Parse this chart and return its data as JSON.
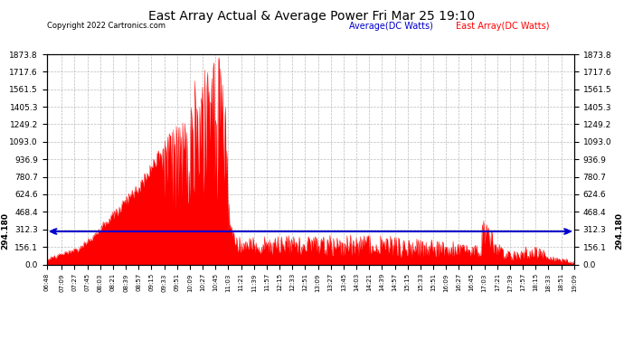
{
  "title": "East Array Actual & Average Power Fri Mar 25 19:10",
  "copyright": "Copyright 2022 Cartronics.com",
  "legend_avg": "Average(DC Watts)",
  "legend_east": "East Array(DC Watts)",
  "avg_value": 294.18,
  "ymax": 1873.8,
  "yticks": [
    0.0,
    156.1,
    312.3,
    468.4,
    624.6,
    780.7,
    936.9,
    1093.0,
    1249.2,
    1405.3,
    1561.5,
    1717.6,
    1873.8
  ],
  "avg_label": "294.180",
  "background_color": "#ffffff",
  "plot_bg_color": "#ffffff",
  "grid_color": "#aaaaaa",
  "east_fill_color": "#ff0000",
  "east_line_color": "#ff0000",
  "avg_line_color": "#0000cc",
  "title_color": "#000000",
  "copyright_color": "#000000",
  "avg_text_color": "#0000cc",
  "east_text_color": "#ff0000",
  "tick_labels": [
    "06:48",
    "07:09",
    "07:27",
    "07:45",
    "08:03",
    "08:21",
    "08:39",
    "08:57",
    "09:15",
    "09:33",
    "09:51",
    "10:09",
    "10:27",
    "10:45",
    "11:03",
    "11:21",
    "11:39",
    "11:57",
    "12:15",
    "12:33",
    "12:51",
    "13:09",
    "13:27",
    "13:45",
    "14:03",
    "14:21",
    "14:39",
    "14:57",
    "15:15",
    "15:33",
    "15:51",
    "16:09",
    "16:27",
    "16:45",
    "17:03",
    "17:21",
    "17:39",
    "17:57",
    "18:15",
    "18:33",
    "18:51",
    "19:09"
  ]
}
